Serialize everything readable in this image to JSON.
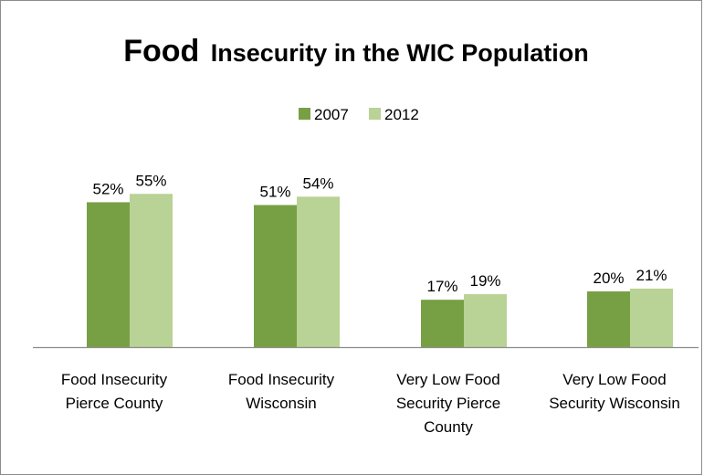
{
  "chart_data": {
    "type": "bar",
    "title_bold": "Food",
    "title_rest": "Insecurity in the WIC Population",
    "categories": [
      [
        "Food Insecurity",
        "Pierce County"
      ],
      [
        "Food Insecurity",
        "Wisconsin"
      ],
      [
        "Very Low Food",
        "Security Pierce",
        "County"
      ],
      [
        "Very Low Food",
        "Security Wisconsin"
      ]
    ],
    "series": [
      {
        "name": "2007",
        "values": [
          52,
          51,
          17,
          20
        ],
        "labels": [
          "52%",
          "51%",
          "17%",
          "20%"
        ],
        "color": "#77a044"
      },
      {
        "name": "2012",
        "values": [
          55,
          54,
          19,
          21
        ],
        "labels": [
          "55%",
          "54%",
          "19%",
          "21%"
        ],
        "color": "#b9d295"
      }
    ],
    "ylim": [
      0,
      60
    ],
    "legend_position": "top-center",
    "grid": false,
    "axis_color": "#8c8c8c"
  }
}
